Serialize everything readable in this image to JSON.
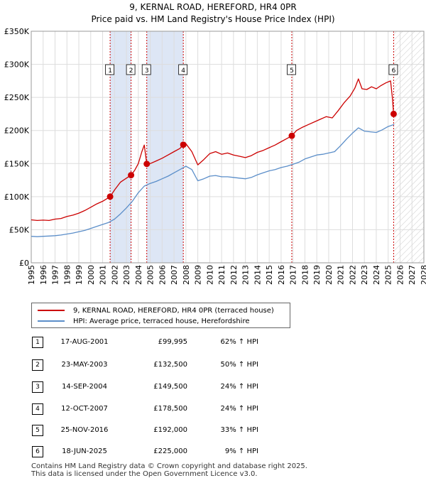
{
  "chart_data": {
    "type": "line",
    "title": "9, KERNAL ROAD, HEREFORD, HR4 0PR",
    "subtitle": "Price paid vs. HM Land Registry's House Price Index (HPI)",
    "xlabel": "",
    "ylabel": "",
    "xlim": [
      1995,
      2028
    ],
    "ylim": [
      0,
      350000
    ],
    "y_ticks": [
      0,
      50000,
      100000,
      150000,
      200000,
      250000,
      300000,
      350000
    ],
    "y_tick_labels": [
      "£0",
      "£50K",
      "£100K",
      "£150K",
      "£200K",
      "£250K",
      "£300K",
      "£350K"
    ],
    "x_ticks": [
      1995,
      1996,
      1997,
      1998,
      1999,
      2000,
      2001,
      2002,
      2003,
      2004,
      2005,
      2006,
      2007,
      2008,
      2009,
      2010,
      2011,
      2012,
      2013,
      2014,
      2015,
      2016,
      2017,
      2018,
      2019,
      2020,
      2021,
      2022,
      2023,
      2024,
      2025,
      2026,
      2027,
      2028
    ],
    "x_tick_labels": [
      "1995",
      "1996",
      "1997",
      "1998",
      "1999",
      "2000",
      "2001",
      "2002",
      "2003",
      "2004",
      "2005",
      "2006",
      "2007",
      "2008",
      "2009",
      "2010",
      "2011",
      "2012",
      "2013",
      "2014",
      "2015",
      "2016",
      "2017",
      "2018",
      "2019",
      "2020",
      "2021",
      "2022",
      "2023",
      "2024",
      "2025",
      "2026",
      "2027",
      "2028"
    ],
    "hatch_from": 2025.5,
    "shaded_spans": [
      [
        2001.63,
        2003.39
      ],
      [
        2004.71,
        2007.78
      ]
    ],
    "series": [
      {
        "name": "9, KERNAL ROAD, HEREFORD, HR4 0PR (terraced house)",
        "color": "#cc0000",
        "x": [
          1995.0,
          1995.5,
          1996.0,
          1996.5,
          1997.0,
          1997.5,
          1998.0,
          1998.5,
          1999.0,
          1999.5,
          2000.0,
          2000.5,
          2001.0,
          2001.63,
          2002.0,
          2002.5,
          2003.0,
          2003.39,
          2003.7,
          2004.0,
          2004.3,
          2004.5,
          2004.71,
          2005.0,
          2005.5,
          2006.0,
          2006.5,
          2007.0,
          2007.5,
          2007.78,
          2008.0,
          2008.5,
          2009.0,
          2009.5,
          2010.0,
          2010.5,
          2011.0,
          2011.5,
          2012.0,
          2012.5,
          2013.0,
          2013.5,
          2014.0,
          2014.5,
          2015.0,
          2015.5,
          2016.0,
          2016.5,
          2016.9,
          2017.3,
          2017.8,
          2018.3,
          2018.8,
          2019.3,
          2019.8,
          2020.3,
          2020.8,
          2021.3,
          2021.8,
          2022.2,
          2022.5,
          2022.8,
          2023.2,
          2023.6,
          2024.0,
          2024.4,
          2024.8,
          2025.2,
          2025.35,
          2025.46
        ],
        "values": [
          65000,
          64000,
          64500,
          64000,
          66000,
          67000,
          70000,
          72000,
          75000,
          79000,
          84000,
          89000,
          93000,
          99995,
          110000,
          122000,
          128000,
          132500,
          140000,
          150000,
          168000,
          178000,
          149500,
          150000,
          154000,
          158000,
          163000,
          168000,
          173000,
          178500,
          180000,
          168000,
          148000,
          156000,
          165000,
          168000,
          164000,
          166000,
          163000,
          161000,
          159000,
          162000,
          167000,
          170000,
          174000,
          178000,
          183000,
          188000,
          192000,
          200000,
          205000,
          209000,
          213000,
          217000,
          221000,
          219000,
          230000,
          242000,
          252000,
          264000,
          278000,
          263000,
          262000,
          266000,
          263000,
          268000,
          272000,
          275000,
          250000,
          225000
        ]
      },
      {
        "name": "HPI: Average price, terraced house, Herefordshire",
        "color": "#5b8ec9",
        "x": [
          1995.0,
          1995.5,
          1996.0,
          1996.5,
          1997.0,
          1997.5,
          1998.0,
          1998.5,
          1999.0,
          1999.5,
          2000.0,
          2000.5,
          2001.0,
          2001.5,
          2002.0,
          2002.5,
          2003.0,
          2003.5,
          2004.0,
          2004.5,
          2005.0,
          2005.5,
          2006.0,
          2006.5,
          2007.0,
          2007.5,
          2008.0,
          2008.5,
          2009.0,
          2009.5,
          2010.0,
          2010.5,
          2011.0,
          2011.5,
          2012.0,
          2012.5,
          2013.0,
          2013.5,
          2014.0,
          2014.5,
          2015.0,
          2015.5,
          2016.0,
          2016.5,
          2017.0,
          2017.5,
          2018.0,
          2018.5,
          2019.0,
          2019.5,
          2020.0,
          2020.5,
          2021.0,
          2021.5,
          2022.0,
          2022.5,
          2023.0,
          2023.5,
          2024.0,
          2024.5,
          2025.0,
          2025.5
        ],
        "values": [
          40000,
          39500,
          40000,
          40500,
          41000,
          42000,
          43500,
          45000,
          47000,
          49000,
          52000,
          55000,
          58000,
          61000,
          66000,
          74000,
          83000,
          93000,
          106000,
          116000,
          120000,
          123000,
          127000,
          131000,
          136000,
          141000,
          146000,
          141000,
          124000,
          127000,
          131000,
          132000,
          130000,
          130000,
          129000,
          128000,
          127000,
          129000,
          133000,
          136000,
          139000,
          141000,
          144000,
          146000,
          149000,
          152000,
          157000,
          160000,
          163000,
          164000,
          166000,
          168000,
          177000,
          187000,
          196000,
          204000,
          199000,
          198000,
          197000,
          201000,
          206000,
          209000
        ]
      }
    ],
    "markers": [
      {
        "label": "1",
        "x": 2001.63,
        "y": 99995
      },
      {
        "label": "2",
        "x": 2003.39,
        "y": 132500
      },
      {
        "label": "3",
        "x": 2004.71,
        "y": 149500
      },
      {
        "label": "4",
        "x": 2007.78,
        "y": 178500
      },
      {
        "label": "5",
        "x": 2016.9,
        "y": 192000
      },
      {
        "label": "6",
        "x": 2025.46,
        "y": 225000
      }
    ]
  },
  "legend": {
    "property_label": "9, KERNAL ROAD, HEREFORD, HR4 0PR (terraced house)",
    "hpi_label": "HPI: Average price, terraced house, Herefordshire"
  },
  "transactions": [
    {
      "num": "1",
      "date": "17-AUG-2001",
      "price": "£99,995",
      "hpi": "62% ↑ HPI"
    },
    {
      "num": "2",
      "date": "23-MAY-2003",
      "price": "£132,500",
      "hpi": "50% ↑ HPI"
    },
    {
      "num": "3",
      "date": "14-SEP-2004",
      "price": "£149,500",
      "hpi": "24% ↑ HPI"
    },
    {
      "num": "4",
      "date": "12-OCT-2007",
      "price": "£178,500",
      "hpi": "24% ↑ HPI"
    },
    {
      "num": "5",
      "date": "25-NOV-2016",
      "price": "£192,000",
      "hpi": "33% ↑ HPI"
    },
    {
      "num": "6",
      "date": "18-JUN-2025",
      "price": "£225,000",
      "hpi": "9% ↑ HPI"
    }
  ],
  "footer": {
    "line1": "Contains HM Land Registry data © Crown copyright and database right 2025.",
    "line2": "This data is licensed under the Open Government Licence v3.0."
  },
  "colors": {
    "property": "#cc0000",
    "hpi": "#5b8ec9",
    "shade": "#dde6f5",
    "grid": "#dddddd"
  }
}
